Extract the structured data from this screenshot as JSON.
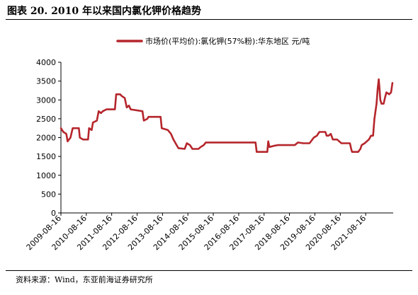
{
  "title": "图表 20. 2010 年以来国内氯化钾价格趋势",
  "source": "资料来源：Wind，东亚前海证券研究所",
  "chart_data": {
    "type": "line",
    "title": "",
    "xlabel": "",
    "ylabel": "",
    "ylim": [
      0,
      4000
    ],
    "yticks": [
      0,
      500,
      1000,
      1500,
      2000,
      2500,
      3000,
      3500,
      4000
    ],
    "xticks": [
      "2009-08-16",
      "2010-08-16",
      "2011-08-16",
      "2012-08-16",
      "2013-08-16",
      "2014-08-16",
      "2015-08-16",
      "2016-08-16",
      "2017-08-16",
      "2018-08-16",
      "2019-08-16",
      "2020-08-16",
      "2021-08-16"
    ],
    "grid": false,
    "legend_position": "top-center",
    "color": "#b5262c",
    "series": [
      {
        "name": "市场价(平均价):氯化钾(57%粉):华东地区 元/吨",
        "points": [
          [
            "2009-08-16",
            2250
          ],
          [
            "2009-09-20",
            2150
          ],
          [
            "2009-11-01",
            2100
          ],
          [
            "2009-11-20",
            1900
          ],
          [
            "2010-01-01",
            2000
          ],
          [
            "2010-02-01",
            2250
          ],
          [
            "2010-05-01",
            2250
          ],
          [
            "2010-05-15",
            2000
          ],
          [
            "2010-07-01",
            1950
          ],
          [
            "2010-09-10",
            1950
          ],
          [
            "2010-09-25",
            2250
          ],
          [
            "2010-11-01",
            2200
          ],
          [
            "2010-11-20",
            2400
          ],
          [
            "2011-01-15",
            2450
          ],
          [
            "2011-02-10",
            2700
          ],
          [
            "2011-03-15",
            2650
          ],
          [
            "2011-04-10",
            2700
          ],
          [
            "2011-06-01",
            2750
          ],
          [
            "2011-08-16",
            2750
          ],
          [
            "2011-10-01",
            2750
          ],
          [
            "2011-10-20",
            3150
          ],
          [
            "2011-12-15",
            3150
          ],
          [
            "2012-01-10",
            3100
          ],
          [
            "2012-02-20",
            3050
          ],
          [
            "2012-03-20",
            2800
          ],
          [
            "2012-04-20",
            2850
          ],
          [
            "2012-05-15",
            2750
          ],
          [
            "2012-11-01",
            2700
          ],
          [
            "2012-11-20",
            2450
          ],
          [
            "2013-01-10",
            2500
          ],
          [
            "2013-01-25",
            2550
          ],
          [
            "2013-07-20",
            2550
          ],
          [
            "2013-08-05",
            2250
          ],
          [
            "2013-11-01",
            2200
          ],
          [
            "2013-12-15",
            2100
          ],
          [
            "2014-01-20",
            1950
          ],
          [
            "2014-02-20",
            1850
          ],
          [
            "2014-04-01",
            1720
          ],
          [
            "2014-07-01",
            1700
          ],
          [
            "2014-08-01",
            1850
          ],
          [
            "2014-09-15",
            1800
          ],
          [
            "2014-10-20",
            1700
          ],
          [
            "2015-01-15",
            1700
          ],
          [
            "2015-02-15",
            1750
          ],
          [
            "2015-04-01",
            1800
          ],
          [
            "2015-05-01",
            1870
          ],
          [
            "2016-08-16",
            1870
          ],
          [
            "2017-04-15",
            1870
          ],
          [
            "2017-05-01",
            1620
          ],
          [
            "2017-10-01",
            1620
          ],
          [
            "2017-10-15",
            1900
          ],
          [
            "2017-11-01",
            1750
          ],
          [
            "2018-01-01",
            1780
          ],
          [
            "2018-03-01",
            1800
          ],
          [
            "2018-11-01",
            1800
          ],
          [
            "2018-12-15",
            1870
          ],
          [
            "2019-03-01",
            1850
          ],
          [
            "2019-06-01",
            1850
          ],
          [
            "2019-08-01",
            2000
          ],
          [
            "2019-09-15",
            2050
          ],
          [
            "2019-10-20",
            2150
          ],
          [
            "2020-01-15",
            2150
          ],
          [
            "2020-02-01",
            2050
          ],
          [
            "2020-03-01",
            2050
          ],
          [
            "2020-04-01",
            2100
          ],
          [
            "2020-05-01",
            1950
          ],
          [
            "2020-07-01",
            1950
          ],
          [
            "2020-08-01",
            1900
          ],
          [
            "2020-09-01",
            1850
          ],
          [
            "2020-11-01",
            1850
          ],
          [
            "2021-01-01",
            1850
          ],
          [
            "2021-01-20",
            1700
          ],
          [
            "2021-02-01",
            1620
          ],
          [
            "2021-05-01",
            1620
          ],
          [
            "2021-06-01",
            1700
          ],
          [
            "2021-06-20",
            1800
          ],
          [
            "2021-08-01",
            1850
          ],
          [
            "2021-09-01",
            1900
          ],
          [
            "2021-10-01",
            1950
          ],
          [
            "2021-11-01",
            2050
          ],
          [
            "2021-12-01",
            2050
          ],
          [
            "2021-12-20",
            2500
          ],
          [
            "2022-01-20",
            2900
          ],
          [
            "2022-02-05",
            3300
          ],
          [
            "2022-02-20",
            3550
          ],
          [
            "2022-03-01",
            3350
          ],
          [
            "2022-03-15",
            3000
          ],
          [
            "2022-04-01",
            2900
          ],
          [
            "2022-05-01",
            2900
          ],
          [
            "2022-05-20",
            3050
          ],
          [
            "2022-06-10",
            3200
          ],
          [
            "2022-07-20",
            3150
          ],
          [
            "2022-08-16",
            3200
          ],
          [
            "2022-09-05",
            3450
          ]
        ]
      }
    ]
  }
}
